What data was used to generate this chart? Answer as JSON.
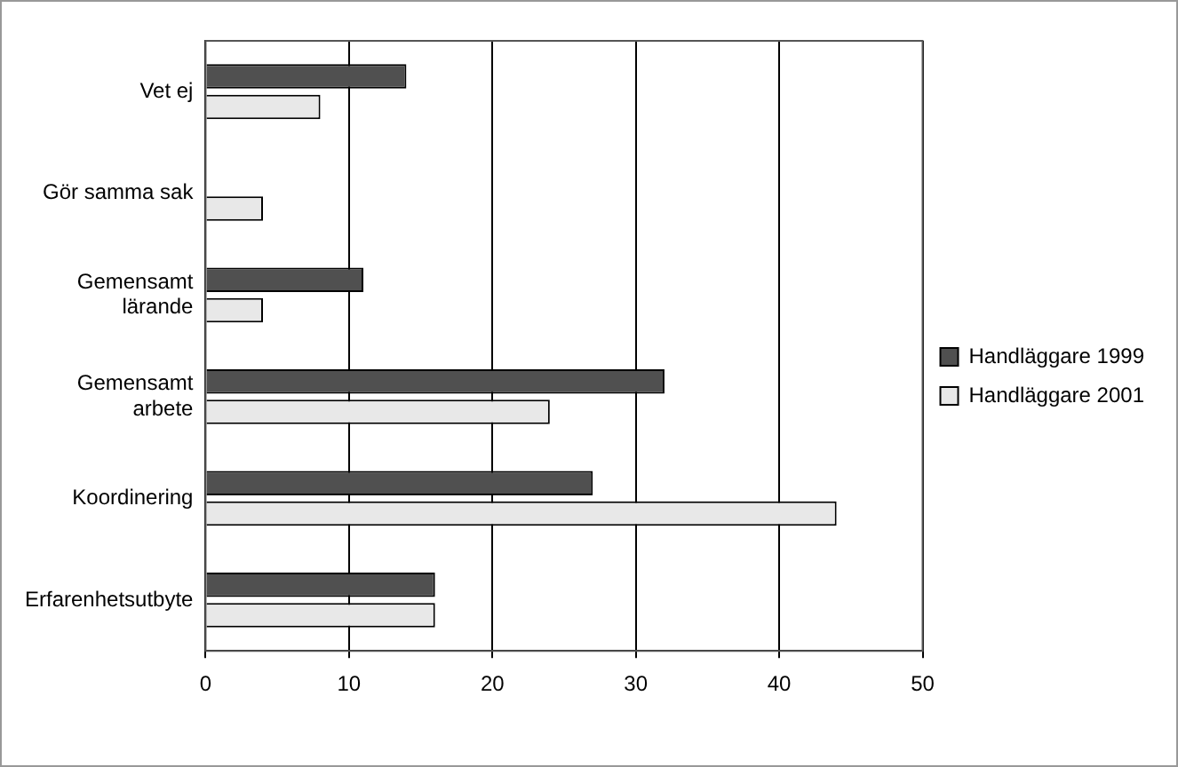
{
  "chart_data": {
    "type": "bar",
    "orientation": "horizontal",
    "categories": [
      "Vet ej",
      "Gör samma sak",
      "Gemensamt\nlärande",
      "Gemensamt\narbete",
      "Koordinering",
      "Erfarenhetsutbyte"
    ],
    "series": [
      {
        "name": "Handläggare 1999",
        "color": "#505050",
        "values": [
          14,
          null,
          11,
          32,
          27,
          16
        ]
      },
      {
        "name": "Handläggare 2001",
        "color": "#e8e8e8",
        "values": [
          8,
          4,
          4,
          24,
          44,
          16
        ]
      }
    ],
    "xlim": [
      0,
      50
    ],
    "xticks": [
      0,
      10,
      20,
      30,
      40,
      50
    ],
    "grid": "x",
    "legend": "right"
  }
}
